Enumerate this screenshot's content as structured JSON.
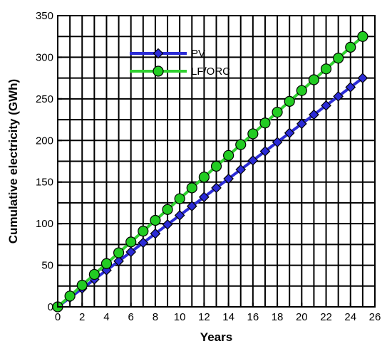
{
  "chart_data": {
    "type": "line",
    "xlabel": "Years",
    "ylabel": "Cumulative electricity (GWh)",
    "xlim": [
      0,
      26
    ],
    "ylim": [
      0,
      350
    ],
    "xticks": [
      0,
      2,
      4,
      6,
      8,
      10,
      12,
      14,
      16,
      18,
      20,
      22,
      24,
      26
    ],
    "yticks": [
      0,
      50,
      100,
      150,
      200,
      250,
      300,
      350
    ],
    "grid": true,
    "legend_position": "top-center",
    "x": [
      0,
      1,
      2,
      3,
      4,
      5,
      6,
      7,
      8,
      9,
      10,
      11,
      12,
      13,
      14,
      15,
      16,
      17,
      18,
      19,
      20,
      21,
      22,
      23,
      24,
      25
    ],
    "series": [
      {
        "name": "PV",
        "marker": "diamond",
        "line_color": "#2b2bd6",
        "marker_color": "#2b2bd6",
        "values": [
          0,
          11,
          22,
          33,
          44,
          55,
          66,
          77,
          88,
          99,
          110,
          121,
          132,
          143,
          154,
          165,
          176,
          187,
          198,
          209,
          220,
          231,
          242,
          253,
          264,
          275
        ]
      },
      {
        "name": "LF/ORC",
        "marker": "circle",
        "line_color": "#2fd12f",
        "marker_color": "#22cc22",
        "values": [
          0,
          13,
          26,
          39,
          52,
          65,
          78,
          91,
          104,
          117,
          130,
          143,
          156,
          169,
          182,
          195,
          208,
          221,
          234,
          247,
          260,
          273,
          286,
          299,
          312,
          325
        ]
      }
    ]
  }
}
